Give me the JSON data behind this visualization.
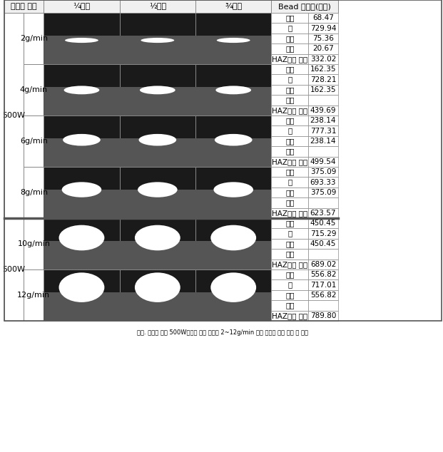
{
  "title": "",
  "headers": [
    "프린팅 조건",
    "¼지점",
    "½지점",
    "¾지점",
    "Bead 형상값(평균)"
  ],
  "power": "500W",
  "groups": [
    {
      "flow_rate": "2g/min",
      "rows": [
        {
          "label": "높이",
          "value": "68.47"
        },
        {
          "label": "폭",
          "value": "729.94"
        },
        {
          "label": "두께",
          "value": "75.36"
        },
        {
          "label": "깊이",
          "value": "20.67"
        },
        {
          "label": "HAZ포함 높이",
          "value": "332.02"
        }
      ]
    },
    {
      "flow_rate": "4g/min",
      "rows": [
        {
          "label": "높이",
          "value": "162.35"
        },
        {
          "label": "폭",
          "value": "728.21"
        },
        {
          "label": "두께",
          "value": "162.35"
        },
        {
          "label": "깊이",
          "value": ""
        },
        {
          "label": "HAZ포함 높이",
          "value": "439.69"
        }
      ]
    },
    {
      "flow_rate": "6g/min",
      "rows": [
        {
          "label": "높이",
          "value": "238.14"
        },
        {
          "label": "폭",
          "value": "777.31"
        },
        {
          "label": "두께",
          "value": "238.14"
        },
        {
          "label": "깊이",
          "value": ""
        },
        {
          "label": "HAZ포함 높이",
          "value": "499.54"
        }
      ]
    },
    {
      "flow_rate": "8g/min",
      "rows": [
        {
          "label": "높이",
          "value": "375.09"
        },
        {
          "label": "폭",
          "value": "693.33"
        },
        {
          "label": "두께",
          "value": "375.09"
        },
        {
          "label": "깊이",
          "value": ""
        },
        {
          "label": "HAZ포함 높이",
          "value": "623.57"
        }
      ]
    }
  ],
  "groups2": [
    {
      "flow_rate": "10g/min",
      "rows": [
        {
          "label": "높이",
          "value": "450.45"
        },
        {
          "label": "폭",
          "value": "715.29"
        },
        {
          "label": "두께",
          "value": "450.45"
        },
        {
          "label": "깊이",
          "value": ""
        },
        {
          "label": "HAZ포함 높이",
          "value": "689.02"
        }
      ]
    },
    {
      "flow_rate": "12g/min",
      "rows": [
        {
          "label": "높이",
          "value": "556.82"
        },
        {
          "label": "폭",
          "value": "717.01"
        },
        {
          "label": "두께",
          "value": "556.82"
        },
        {
          "label": "깊이",
          "value": ""
        },
        {
          "label": "HAZ포함 높이",
          "value": "789.80"
        }
      ]
    }
  ],
  "bg_color": "#ffffff",
  "header_bg": "#e0e0e0",
  "cell_bg": "#ffffff",
  "border_color": "#888888",
  "image_bg": "#1a1a1a",
  "font_size_header": 8,
  "font_size_cell": 7.5
}
